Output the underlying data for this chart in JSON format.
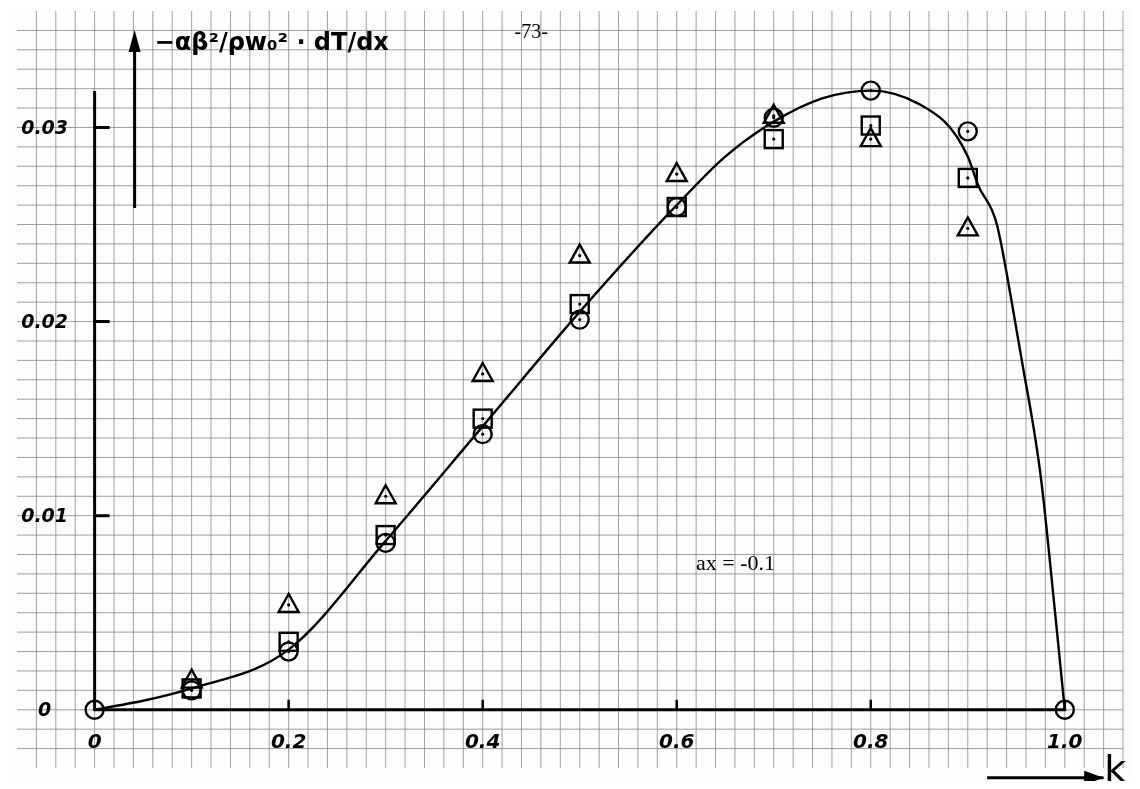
{
  "chart_data": {
    "type": "scatter",
    "ylabel": "−αβ²/ρw₀² · dT/dx",
    "xlabel": "k",
    "annotations": [
      "-73-",
      "ax = -0.1"
    ],
    "xlim": [
      -0.08,
      1.06
    ],
    "ylim": [
      -0.003,
      0.036
    ],
    "xticks": [
      {
        "value": -0.06,
        "label": null
      },
      {
        "value": -0.04,
        "label": null
      },
      {
        "value": -0.02,
        "label": null
      },
      0,
      {
        "value": 0.02,
        "label": null
      },
      {
        "value": 0.04,
        "label": null
      },
      {
        "value": 0.06,
        "label": null
      },
      {
        "value": 0.08,
        "label": null
      },
      {
        "value": 0.1,
        "label": null
      },
      {
        "value": 0.12,
        "label": null
      },
      {
        "value": 0.14,
        "label": null
      },
      {
        "value": 0.16,
        "label": null
      },
      {
        "value": 0.18,
        "label": null
      },
      0.2,
      {
        "value": 0.22,
        "label": null
      },
      {
        "value": 0.24,
        "label": null
      },
      {
        "value": 0.26,
        "label": null
      },
      {
        "value": 0.28,
        "label": null
      },
      {
        "value": 0.3,
        "label": null
      },
      {
        "value": 0.32,
        "label": null
      },
      {
        "value": 0.34,
        "label": null
      },
      {
        "value": 0.36,
        "label": null
      },
      {
        "value": 0.38,
        "label": null
      },
      0.4,
      {
        "value": 0.42,
        "label": null
      },
      {
        "value": 0.44,
        "label": null
      },
      {
        "value": 0.46,
        "label": null
      },
      {
        "value": 0.48,
        "label": null
      },
      {
        "value": 0.5,
        "label": null
      },
      {
        "value": 0.52,
        "label": null
      },
      {
        "value": 0.54,
        "label": null
      },
      {
        "value": 0.56,
        "label": null
      },
      {
        "value": 0.58,
        "label": null
      },
      0.6,
      {
        "value": 0.62,
        "label": null
      },
      {
        "value": 0.64,
        "label": null
      },
      {
        "value": 0.66,
        "label": null
      },
      {
        "value": 0.68,
        "label": null
      },
      {
        "value": 0.7,
        "label": null
      },
      {
        "value": 0.72,
        "label": null
      },
      {
        "value": 0.74,
        "label": null
      },
      {
        "value": 0.76,
        "label": null
      },
      {
        "value": 0.78,
        "label": null
      },
      0.8,
      {
        "value": 0.82,
        "label": null
      },
      {
        "value": 0.84,
        "label": null
      },
      {
        "value": 0.86,
        "label": null
      },
      {
        "value": 0.88,
        "label": null
      },
      {
        "value": 0.9,
        "label": null
      },
      {
        "value": 0.92,
        "label": null
      },
      {
        "value": 0.94,
        "label": null
      },
      {
        "value": 0.96,
        "label": null
      },
      {
        "value": 0.98,
        "label": null
      },
      {
        "value": 1,
        "label": "1.0"
      },
      {
        "value": 1.02,
        "label": null
      },
      {
        "value": 1.04,
        "label": null
      },
      {
        "value": 1.06,
        "label": null
      }
    ],
    "yticks": [
      {
        "value": -0.002,
        "label": null
      },
      {
        "value": -0.001,
        "label": null
      },
      0,
      {
        "value": 0.001,
        "label": null
      },
      {
        "value": 0.002,
        "label": null
      },
      {
        "value": 0.003,
        "label": null
      },
      {
        "value": 0.004,
        "label": null
      },
      {
        "value": 0.005,
        "label": null
      },
      {
        "value": 0.006,
        "label": null
      },
      {
        "value": 0.007,
        "label": null
      },
      {
        "value": 0.008,
        "label": null
      },
      {
        "value": 0.009,
        "label": null
      },
      0.01,
      {
        "value": 0.011,
        "label": null
      },
      {
        "value": 0.012,
        "label": null
      },
      {
        "value": 0.013,
        "label": null
      },
      {
        "value": 0.014,
        "label": null
      },
      {
        "value": 0.015,
        "label": null
      },
      {
        "value": 0.016,
        "label": null
      },
      {
        "value": 0.017,
        "label": null
      },
      {
        "value": 0.018,
        "label": null
      },
      {
        "value": 0.019,
        "label": null
      },
      0.02,
      {
        "value": 0.021,
        "label": null
      },
      {
        "value": 0.022,
        "label": null
      },
      {
        "value": 0.023,
        "label": null
      },
      {
        "value": 0.024,
        "label": null
      },
      {
        "value": 0.025,
        "label": null
      },
      {
        "value": 0.026,
        "label": null
      },
      {
        "value": 0.027,
        "label": null
      },
      {
        "value": 0.028,
        "label": null
      },
      {
        "value": 0.029,
        "label": null
      },
      0.03,
      {
        "value": 0.031,
        "label": null
      },
      {
        "value": 0.032,
        "label": null
      },
      {
        "value": 0.033,
        "label": null
      },
      {
        "value": 0.034,
        "label": null
      },
      {
        "value": 0.035,
        "label": null
      }
    ],
    "grid": true,
    "series": [
      {
        "type": "line",
        "color": "#000000",
        "marker": "none",
        "x": [
          0,
          0.1,
          0.2,
          0.3,
          0.4,
          0.5,
          0.6,
          0.65,
          0.7,
          0.75,
          0.8,
          0.85,
          0.9,
          0.91,
          0.93,
          0.945,
          0.955,
          0.976,
          0.99,
          1.0
        ],
        "values": [
          0,
          0.0011,
          0.0031,
          0.0087,
          0.0146,
          0.0205,
          0.026,
          0.0285,
          0.0303,
          0.0315,
          0.0319,
          0.0312,
          0.0285,
          0.0271,
          0.025,
          0.0211,
          0.0182,
          0.0117,
          0.005,
          0
        ]
      },
      {
        "color": "#000000",
        "marker": "triangle",
        "x": [
          0.1,
          0.2,
          0.3,
          0.4,
          0.5,
          0.6,
          0.7,
          0.8,
          0.9
        ],
        "values": [
          0.0015,
          0.0054,
          0.011,
          0.0173,
          0.0234,
          0.0276,
          0.0306,
          0.0294,
          0.0248
        ]
      },
      {
        "color": "#000000",
        "marker": "square",
        "x": [
          0.1,
          0.2,
          0.3,
          0.4,
          0.5,
          0.6,
          0.7,
          0.8,
          0.9
        ],
        "values": [
          0.0011,
          0.0035,
          0.009,
          0.015,
          0.0209,
          0.0259,
          0.0294,
          0.0301,
          0.0274
        ]
      },
      {
        "color": "#000000",
        "marker": "circle",
        "x": [
          0,
          0.1,
          0.2,
          0.3,
          0.4,
          0.5,
          0.6,
          0.7,
          0.8,
          0.9,
          1.0
        ],
        "values": [
          0,
          0.001,
          0.003,
          0.0086,
          0.0142,
          0.0201,
          0.0259,
          0.0305,
          0.0319,
          0.0298,
          0
        ]
      }
    ]
  }
}
